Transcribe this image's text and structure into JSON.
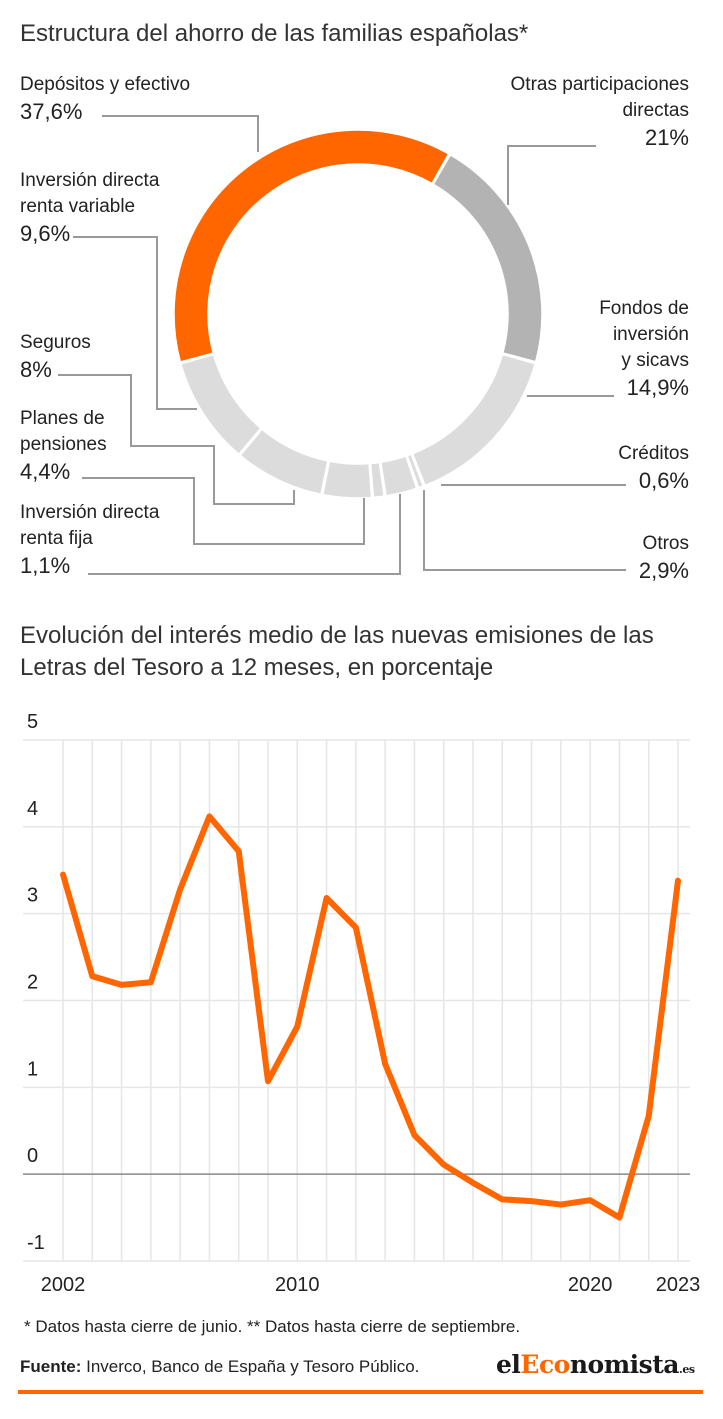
{
  "chart_data": [
    {
      "type": "pie",
      "donut": true,
      "title": "Estructura del ahorro de las familias españolas*",
      "segments": [
        {
          "name": "Depósitos y efectivo",
          "value": 37.6,
          "label": "37,6%",
          "color": "#ff6600"
        },
        {
          "name": "Otras participaciones directas",
          "value": 21.0,
          "label": "21%",
          "color": "#b3b3b3"
        },
        {
          "name": "Fondos de inversión y sicavs",
          "value": 14.9,
          "label": "14,9%",
          "color": "#dcdcdc"
        },
        {
          "name": "Créditos",
          "value": 0.6,
          "label": "0,6%",
          "color": "#dcdcdc"
        },
        {
          "name": "Otros",
          "value": 2.9,
          "label": "2,9%",
          "color": "#dcdcdc"
        },
        {
          "name": "Inversión directa renta fija",
          "value": 1.1,
          "label": "1,1%",
          "color": "#dcdcdc"
        },
        {
          "name": "Planes de pensiones",
          "value": 4.4,
          "label": "4,4%",
          "color": "#dcdcdc"
        },
        {
          "name": "Seguros",
          "value": 8.0,
          "label": "8%",
          "color": "#dcdcdc"
        },
        {
          "name": "Inversión directa renta variable",
          "value": 9.6,
          "label": "9,6%",
          "color": "#dcdcdc"
        }
      ]
    },
    {
      "type": "line",
      "title": "Evolución del interés medio de las nuevas emisiones de las Letras del Tesoro a 12 meses, en porcentaje",
      "x": [
        2002,
        2003,
        2004,
        2005,
        2006,
        2007,
        2008,
        2009,
        2010,
        2011,
        2012,
        2013,
        2014,
        2015,
        2016,
        2017,
        2018,
        2019,
        2020,
        2021,
        2022,
        2023
      ],
      "series": [
        {
          "values": [
            3.45,
            2.28,
            2.18,
            2.21,
            3.28,
            4.12,
            3.72,
            1.07,
            1.7,
            3.18,
            2.84,
            1.27,
            0.45,
            0.11,
            -0.1,
            -0.29,
            -0.31,
            -0.35,
            -0.3,
            -0.5,
            0.67,
            3.38
          ]
        }
      ],
      "xticks": [
        "2002",
        "2010",
        "2020",
        "2023"
      ],
      "xtick_values": [
        2002,
        2010,
        2020,
        2023
      ],
      "yticks": [
        "5",
        "4",
        "3",
        "2",
        "1",
        "0",
        "-1"
      ],
      "ytick_values": [
        5,
        4,
        3,
        2,
        1,
        0,
        -1
      ],
      "ylim": [
        -1,
        5
      ],
      "xlim": [
        2002,
        2023
      ],
      "grid": true,
      "color": "#ff6600"
    }
  ],
  "labels": {
    "depositos": {
      "name": "Depósitos y efectivo",
      "pct": "37,6%"
    },
    "otras": {
      "name1": "Otras participaciones",
      "name2": "directas",
      "pct": "21%"
    },
    "fondos": {
      "name1": "Fondos de",
      "name2": "inversión",
      "name3": "y sicavs",
      "pct": "14,9%"
    },
    "creditos": {
      "name": "Créditos",
      "pct": "0,6%"
    },
    "otros": {
      "name": "Otros",
      "pct": "2,9%"
    },
    "renta_variable": {
      "name1": "Inversión directa",
      "name2": "renta variable",
      "pct": "9,6%"
    },
    "seguros": {
      "name": "Seguros",
      "pct": "8%"
    },
    "planes": {
      "name1": "Planes de",
      "name2": "pensiones",
      "pct": "4,4%"
    },
    "renta_fija": {
      "name1": "Inversión directa",
      "name2": "renta fija",
      "pct": "1,1%"
    }
  },
  "footnote": "* Datos hasta cierre de junio. ** Datos hasta cierre de septiembre.",
  "source": {
    "label": "Fuente:",
    "text": " Inverco, Banco de España y Tesoro Público."
  },
  "brand": {
    "el": "el",
    "eco": "Eco",
    "nomista": "nomista",
    "es": ".es"
  }
}
